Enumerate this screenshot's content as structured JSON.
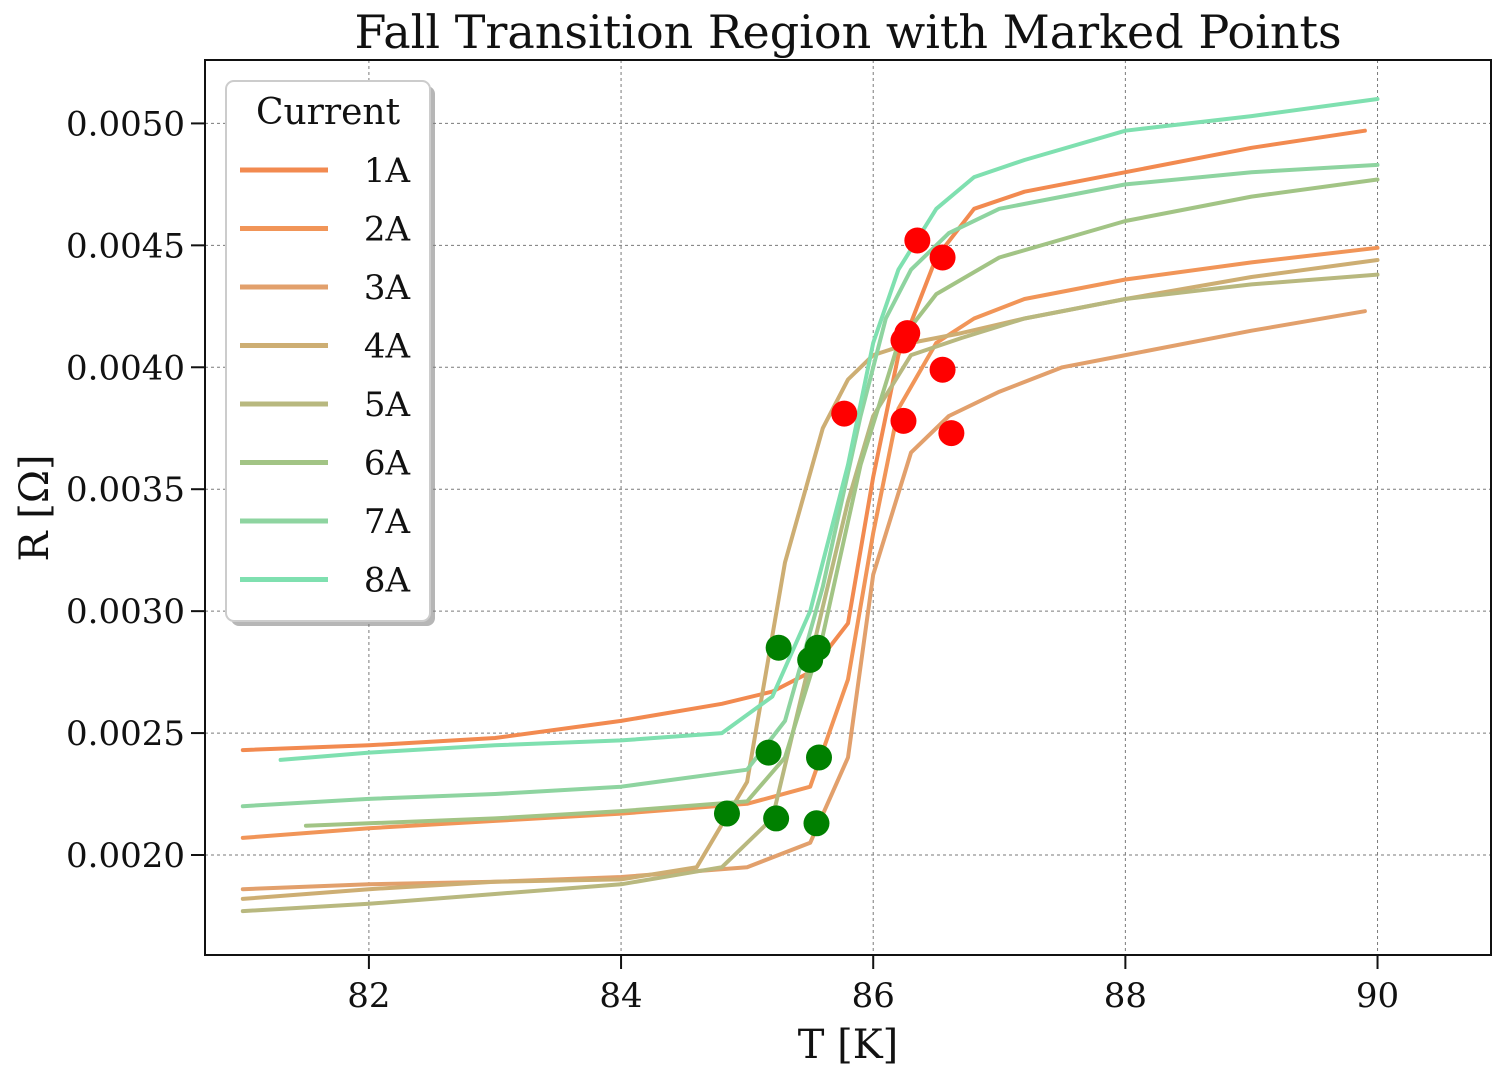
{
  "chart_data": {
    "type": "line",
    "title": "Fall Transition Region with Marked Points",
    "xlabel": "T [K]",
    "ylabel": "R [Ω]",
    "xlim": [
      80.7,
      90.9
    ],
    "ylim": [
      0.00159,
      0.00526
    ],
    "xticks": [
      82,
      84,
      86,
      88,
      90
    ],
    "xtick_labels": [
      "82",
      "84",
      "86",
      "88",
      "90"
    ],
    "yticks": [
      0.002,
      0.0025,
      0.003,
      0.0035,
      0.004,
      0.0045,
      0.005
    ],
    "ytick_labels": [
      "0.0020",
      "0.0025",
      "0.0030",
      "0.0035",
      "0.0040",
      "0.0045",
      "0.0050"
    ],
    "grid": true,
    "legend": {
      "title": "Current",
      "position": "top-left"
    },
    "series": [
      {
        "name": "1A",
        "color": "#f28a50",
        "x": [
          81.0,
          82.0,
          83.0,
          84.0,
          84.8,
          85.2,
          85.5,
          85.8,
          86.0,
          86.2,
          86.5,
          86.8,
          87.2,
          88.0,
          89.0,
          89.9
        ],
        "y": [
          0.00243,
          0.00245,
          0.00248,
          0.00255,
          0.00262,
          0.00267,
          0.00275,
          0.00295,
          0.00355,
          0.00405,
          0.00445,
          0.00465,
          0.00472,
          0.0048,
          0.0049,
          0.00497
        ]
      },
      {
        "name": "2A",
        "color": "#f19558",
        "x": [
          81.0,
          82.0,
          83.0,
          84.0,
          85.0,
          85.5,
          85.8,
          86.0,
          86.2,
          86.5,
          86.8,
          87.2,
          88.0,
          89.0,
          90.0
        ],
        "y": [
          0.00207,
          0.00211,
          0.00214,
          0.00217,
          0.00221,
          0.00228,
          0.00272,
          0.00332,
          0.00383,
          0.0041,
          0.0042,
          0.00428,
          0.00436,
          0.00443,
          0.00449
        ]
      },
      {
        "name": "3A",
        "color": "#e2a06c",
        "x": [
          81.0,
          82.0,
          83.0,
          84.0,
          85.0,
          85.5,
          85.8,
          86.0,
          86.3,
          86.6,
          87.0,
          87.5,
          88.0,
          89.0,
          89.9
        ],
        "y": [
          0.00186,
          0.00188,
          0.00189,
          0.00191,
          0.00195,
          0.00205,
          0.0024,
          0.00315,
          0.00365,
          0.0038,
          0.0039,
          0.004,
          0.00405,
          0.00415,
          0.00423
        ]
      },
      {
        "name": "4A",
        "color": "#cdae73",
        "x": [
          81.0,
          82.0,
          83.0,
          84.0,
          84.6,
          85.0,
          85.3,
          85.6,
          85.8,
          86.0,
          86.3,
          86.7,
          87.2,
          88.0,
          89.0,
          90.0
        ],
        "y": [
          0.00182,
          0.00186,
          0.00189,
          0.0019,
          0.00195,
          0.0023,
          0.0032,
          0.00375,
          0.00395,
          0.00405,
          0.0041,
          0.00414,
          0.0042,
          0.00428,
          0.00437,
          0.00444
        ]
      },
      {
        "name": "5A",
        "color": "#b8b87f",
        "x": [
          81.0,
          82.0,
          83.0,
          84.0,
          84.8,
          85.2,
          85.5,
          85.8,
          86.0,
          86.3,
          86.7,
          87.2,
          88.0,
          89.0,
          90.0
        ],
        "y": [
          0.00177,
          0.0018,
          0.00184,
          0.00188,
          0.00195,
          0.00215,
          0.0028,
          0.00345,
          0.0038,
          0.00405,
          0.00412,
          0.0042,
          0.00428,
          0.00434,
          0.00438
        ]
      },
      {
        "name": "6A",
        "color": "#a2c485",
        "x": [
          81.5,
          82.0,
          83.0,
          84.0,
          85.0,
          85.3,
          85.6,
          85.9,
          86.2,
          86.5,
          87.0,
          88.0,
          89.0,
          90.0
        ],
        "y": [
          0.00212,
          0.00213,
          0.00215,
          0.00218,
          0.00222,
          0.0024,
          0.0029,
          0.0036,
          0.0041,
          0.0043,
          0.00445,
          0.0046,
          0.0047,
          0.00477
        ]
      },
      {
        "name": "7A",
        "color": "#8ed4a0",
        "x": [
          81.0,
          82.0,
          83.0,
          84.0,
          85.0,
          85.3,
          85.6,
          85.9,
          86.1,
          86.3,
          86.6,
          87.0,
          87.5,
          88.0,
          89.0,
          90.0
        ],
        "y": [
          0.0022,
          0.00223,
          0.00225,
          0.00228,
          0.00235,
          0.00255,
          0.0031,
          0.0038,
          0.0042,
          0.0044,
          0.00455,
          0.00465,
          0.0047,
          0.00475,
          0.0048,
          0.00483
        ]
      },
      {
        "name": "8A",
        "color": "#7fe0b0",
        "x": [
          81.3,
          82.0,
          83.0,
          84.0,
          84.8,
          85.2,
          85.5,
          85.8,
          86.0,
          86.2,
          86.5,
          86.8,
          87.2,
          88.0,
          89.0,
          90.0
        ],
        "y": [
          0.00239,
          0.00242,
          0.00245,
          0.00247,
          0.0025,
          0.00265,
          0.003,
          0.0036,
          0.0041,
          0.0044,
          0.00465,
          0.00478,
          0.00485,
          0.00497,
          0.00503,
          0.0051
        ]
      }
    ],
    "marked_points": {
      "upper": {
        "color": "#ff0000",
        "x": [
          86.35,
          86.55,
          86.27,
          86.24,
          86.55,
          85.77,
          86.24,
          86.62
        ],
        "y": [
          0.00452,
          0.00445,
          0.00414,
          0.00411,
          0.00399,
          0.00381,
          0.00378,
          0.00373
        ]
      },
      "lower": {
        "color": "#008000",
        "x": [
          85.25,
          85.56,
          85.5,
          85.17,
          85.57,
          84.84,
          85.23,
          85.55
        ],
        "y": [
          0.00285,
          0.00285,
          0.0028,
          0.00242,
          0.0024,
          0.00217,
          0.00215,
          0.00213
        ]
      }
    }
  }
}
